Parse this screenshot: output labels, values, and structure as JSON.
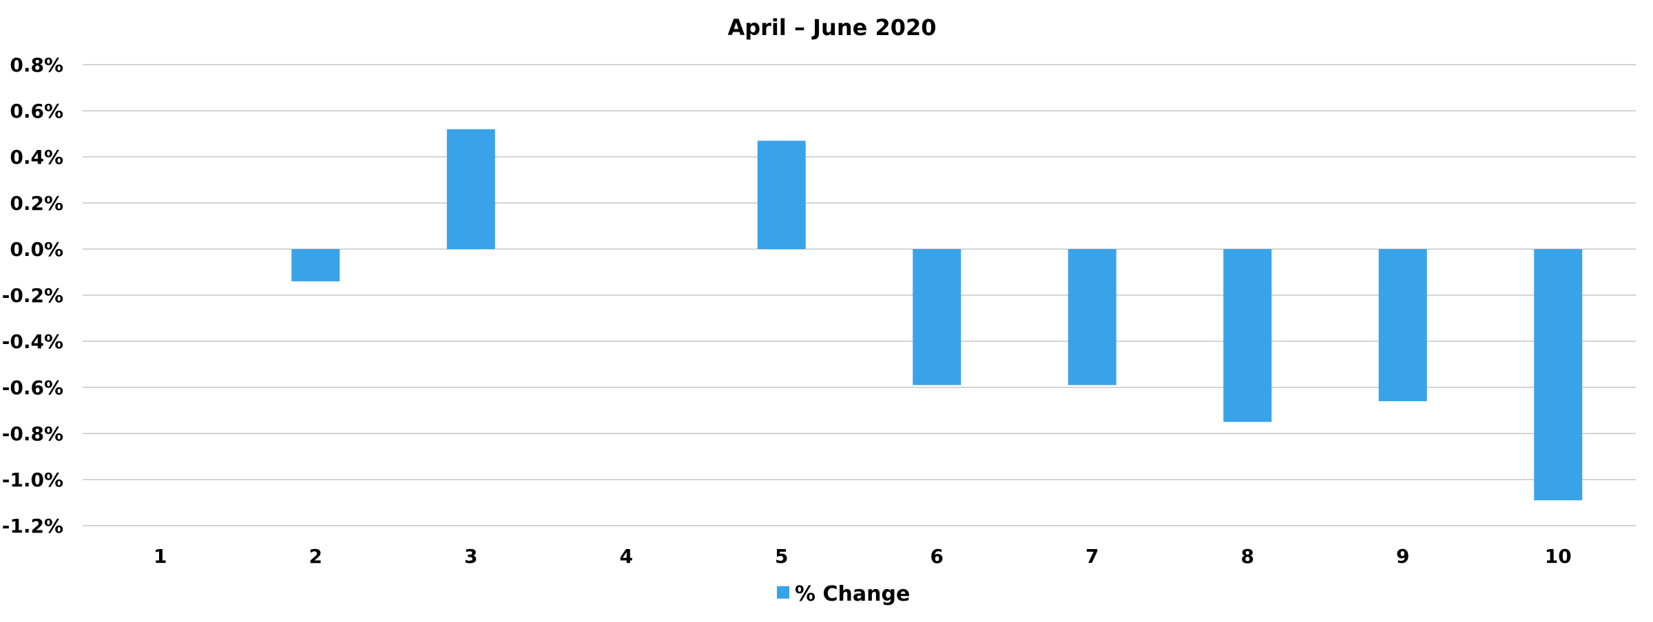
{
  "chart_data": {
    "type": "bar",
    "title": "April – June 2020",
    "xlabel": "",
    "ylabel": "",
    "categories": [
      "1",
      "2",
      "3",
      "4",
      "5",
      "6",
      "7",
      "8",
      "9",
      "10"
    ],
    "series": [
      {
        "name": "% Change",
        "values": [
          0.0,
          -0.14,
          0.52,
          0.0,
          0.47,
          -0.59,
          -0.59,
          -0.75,
          -0.66,
          -1.09
        ]
      }
    ],
    "ylim": [
      -1.2,
      0.8
    ],
    "yticks": [
      "0.8%",
      "0.6%",
      "0.4%",
      "0.2%",
      "0.0%",
      "-0.2%",
      "-0.4%",
      "-0.6%",
      "-0.8%",
      "-1.0%",
      "-1.2%"
    ],
    "ytick_values": [
      0.8,
      0.6,
      0.4,
      0.2,
      0.0,
      -0.2,
      -0.4,
      -0.6,
      -0.8,
      -1.0,
      -1.2
    ],
    "grid": true,
    "legend_position": "bottom-center",
    "colors": {
      "bar": "#39A3EA",
      "grid": "#D4D4D4",
      "text": "#000000"
    }
  }
}
